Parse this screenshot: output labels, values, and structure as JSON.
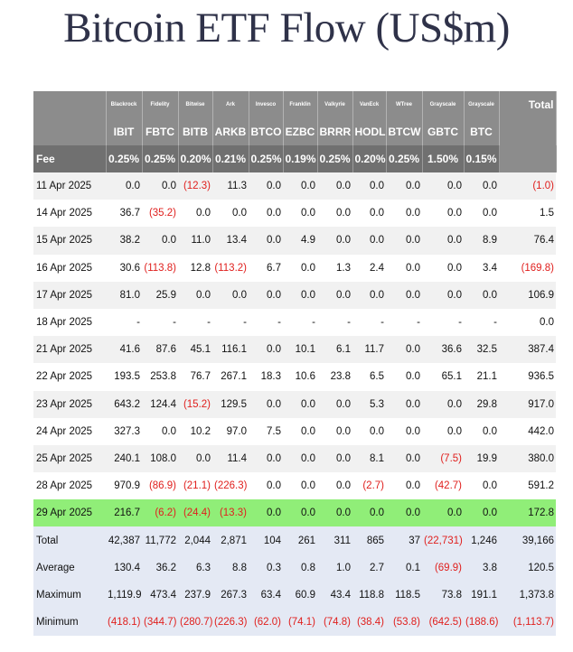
{
  "title": "Bitcoin ETF Flow (US$m)",
  "colors": {
    "header_bg": "#8c8c8c",
    "fee_bg": "#707070",
    "negative": "#e0201e",
    "highlight_row": "#90ee78",
    "stats_bg": "#e4e9f4"
  },
  "chart_data": {
    "type": "table",
    "issuers": [
      "Blackrock",
      "Fidelity",
      "Bitwise",
      "Ark",
      "Invesco",
      "Franklin",
      "Valkyrie",
      "VanEck",
      "WTree",
      "Grayscale",
      "Grayscale"
    ],
    "tickers": [
      "IBIT",
      "FBTC",
      "BITB",
      "ARKB",
      "BTCO",
      "EZBC",
      "BRRR",
      "HODL",
      "BTCW",
      "GBTC",
      "BTC"
    ],
    "total_header": "Total",
    "fee_label": "Fee",
    "fees": [
      "0.25%",
      "0.25%",
      "0.20%",
      "0.21%",
      "0.25%",
      "0.19%",
      "0.25%",
      "0.20%",
      "0.25%",
      "1.50%",
      "0.15%"
    ],
    "rows": [
      {
        "date": "11 Apr 2025",
        "values": [
          "0.0",
          "0.0",
          "(12.3)",
          "11.3",
          "0.0",
          "0.0",
          "0.0",
          "0.0",
          "0.0",
          "0.0",
          "0.0"
        ],
        "total": "(1.0)"
      },
      {
        "date": "14 Apr 2025",
        "values": [
          "36.7",
          "(35.2)",
          "0.0",
          "0.0",
          "0.0",
          "0.0",
          "0.0",
          "0.0",
          "0.0",
          "0.0",
          "0.0"
        ],
        "total": "1.5"
      },
      {
        "date": "15 Apr 2025",
        "values": [
          "38.2",
          "0.0",
          "11.0",
          "13.4",
          "0.0",
          "4.9",
          "0.0",
          "0.0",
          "0.0",
          "0.0",
          "8.9"
        ],
        "total": "76.4"
      },
      {
        "date": "16 Apr 2025",
        "values": [
          "30.6",
          "(113.8)",
          "12.8",
          "(113.2)",
          "6.7",
          "0.0",
          "1.3",
          "2.4",
          "0.0",
          "0.0",
          "3.4"
        ],
        "total": "(169.8)"
      },
      {
        "date": "17 Apr 2025",
        "values": [
          "81.0",
          "25.9",
          "0.0",
          "0.0",
          "0.0",
          "0.0",
          "0.0",
          "0.0",
          "0.0",
          "0.0",
          "0.0"
        ],
        "total": "106.9"
      },
      {
        "date": "18 Apr 2025",
        "values": [
          "-",
          "-",
          "-",
          "-",
          "-",
          "-",
          "-",
          "-",
          "-",
          "-",
          "-"
        ],
        "total": "0.0"
      },
      {
        "date": "21 Apr 2025",
        "values": [
          "41.6",
          "87.6",
          "45.1",
          "116.1",
          "0.0",
          "10.1",
          "6.1",
          "11.7",
          "0.0",
          "36.6",
          "32.5"
        ],
        "total": "387.4"
      },
      {
        "date": "22 Apr 2025",
        "values": [
          "193.5",
          "253.8",
          "76.7",
          "267.1",
          "18.3",
          "10.6",
          "23.8",
          "6.5",
          "0.0",
          "65.1",
          "21.1"
        ],
        "total": "936.5"
      },
      {
        "date": "23 Apr 2025",
        "values": [
          "643.2",
          "124.4",
          "(15.2)",
          "129.5",
          "0.0",
          "0.0",
          "0.0",
          "5.3",
          "0.0",
          "0.0",
          "29.8"
        ],
        "total": "917.0"
      },
      {
        "date": "24 Apr 2025",
        "values": [
          "327.3",
          "0.0",
          "10.2",
          "97.0",
          "7.5",
          "0.0",
          "0.0",
          "0.0",
          "0.0",
          "0.0",
          "0.0"
        ],
        "total": "442.0"
      },
      {
        "date": "25 Apr 2025",
        "values": [
          "240.1",
          "108.0",
          "0.0",
          "11.4",
          "0.0",
          "0.0",
          "0.0",
          "8.1",
          "0.0",
          "(7.5)",
          "19.9"
        ],
        "total": "380.0"
      },
      {
        "date": "28 Apr 2025",
        "values": [
          "970.9",
          "(86.9)",
          "(21.1)",
          "(226.3)",
          "0.0",
          "0.0",
          "0.0",
          "(2.7)",
          "0.0",
          "(42.7)",
          "0.0"
        ],
        "total": "591.2"
      },
      {
        "date": "29 Apr 2025",
        "values": [
          "216.7",
          "(6.2)",
          "(24.4)",
          "(13.3)",
          "0.0",
          "0.0",
          "0.0",
          "0.0",
          "0.0",
          "0.0",
          "0.0"
        ],
        "total": "172.8",
        "highlight": true
      }
    ],
    "stats": [
      {
        "label": "Total",
        "values": [
          "42,387",
          "11,772",
          "2,044",
          "2,871",
          "104",
          "261",
          "311",
          "865",
          "37",
          "(22,731)",
          "1,246"
        ],
        "total": "39,166"
      },
      {
        "label": "Average",
        "values": [
          "130.4",
          "36.2",
          "6.3",
          "8.8",
          "0.3",
          "0.8",
          "1.0",
          "2.7",
          "0.1",
          "(69.9)",
          "3.8"
        ],
        "total": "120.5"
      },
      {
        "label": "Maximum",
        "values": [
          "1,119.9",
          "473.4",
          "237.9",
          "267.3",
          "63.4",
          "60.9",
          "43.4",
          "118.8",
          "118.5",
          "73.8",
          "191.1"
        ],
        "total": "1,373.8"
      },
      {
        "label": "Minimum",
        "values": [
          "(418.1)",
          "(344.7)",
          "(280.7)",
          "(226.3)",
          "(62.0)",
          "(74.1)",
          "(74.8)",
          "(38.4)",
          "(53.8)",
          "(642.5)",
          "(188.6)"
        ],
        "total": "(1,113.7)"
      }
    ]
  }
}
